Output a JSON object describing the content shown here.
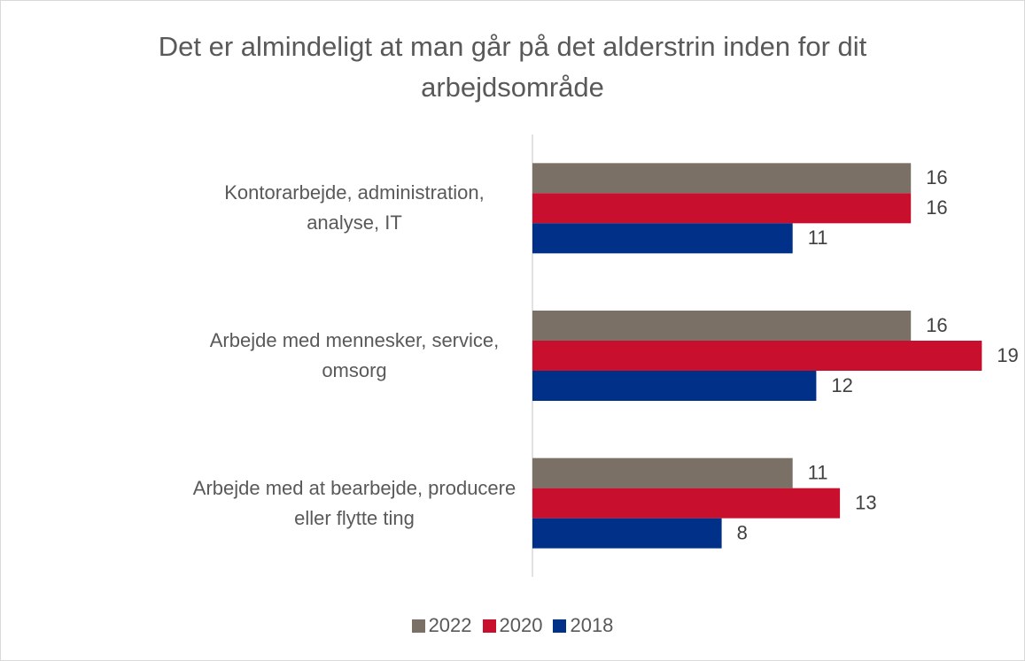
{
  "chart_data": {
    "type": "hbar",
    "title": "Det er almindeligt at man går på det alderstrin inden for dit arbejdsområde",
    "categories": [
      "Kontorarbejde, administration, analyse, IT",
      "Arbejde med mennesker, service, omsorg",
      "Arbejde med at bearbejde, producere eller flytte ting"
    ],
    "series": [
      {
        "name": "2022",
        "color": "#7a7065",
        "values": [
          16,
          16,
          11
        ]
      },
      {
        "name": "2020",
        "color": "#c8102e",
        "values": [
          16,
          19,
          13
        ]
      },
      {
        "name": "2018",
        "color": "#003087",
        "values": [
          11,
          12,
          8
        ]
      }
    ],
    "xlim": [
      0,
      20
    ],
    "legend": "bottom"
  }
}
